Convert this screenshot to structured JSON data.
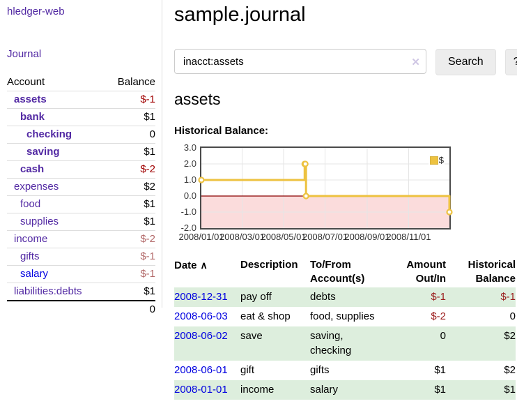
{
  "colors": {
    "link_purple": "#5229a3",
    "link_blue": "#0000e0",
    "negative_strong": "#a00000",
    "negative_soft": "#b36a6a",
    "table_negative": "#9b1c1c",
    "row_stripe_green": "#ddeedd",
    "series_gold": "#EDC240"
  },
  "sidebar": {
    "brand": "hledger-web",
    "nav": [
      {
        "label": "Journal"
      }
    ],
    "accounts_table": {
      "col_account": "Account",
      "col_balance": "Balance",
      "rows": [
        {
          "account": "assets",
          "balance": "$-1",
          "indent": 1,
          "bold": true,
          "negative": "strong"
        },
        {
          "account": "bank",
          "balance": "$1",
          "indent": 2,
          "bold": true
        },
        {
          "account": "checking",
          "balance": "0",
          "indent": 3,
          "bold": true
        },
        {
          "account": "saving",
          "balance": "$1",
          "indent": 3,
          "bold": true
        },
        {
          "account": "cash",
          "balance": "$-2",
          "indent": 2,
          "bold": true,
          "negative": "strong"
        },
        {
          "account": "expenses",
          "balance": "$2",
          "indent": 1
        },
        {
          "account": "food",
          "balance": "$1",
          "indent": 2
        },
        {
          "account": "supplies",
          "balance": "$1",
          "indent": 2
        },
        {
          "account": "income",
          "balance": "$-2",
          "indent": 1,
          "negative": "soft"
        },
        {
          "account": "gifts",
          "balance": "$-1",
          "indent": 2,
          "negative": "soft"
        },
        {
          "account": "salary",
          "balance": "$-1",
          "indent": 2,
          "negative": "soft",
          "link_style": "blue"
        },
        {
          "account": "liabilities:debts",
          "balance": "$1",
          "indent": 1
        }
      ],
      "total": "0"
    }
  },
  "header": {
    "title": "sample.journal"
  },
  "search": {
    "value": "inacct:assets",
    "clear_icon": "✕",
    "button": "Search",
    "help_button": "?"
  },
  "account_page": {
    "heading": "assets",
    "chart_label": "Historical Balance:"
  },
  "chart_data": {
    "type": "line",
    "style": "step-after",
    "title": "Historical Balance",
    "series": [
      {
        "name": "$",
        "color": "#EDC240",
        "points": [
          {
            "date": "2008-01-01",
            "value": 1
          },
          {
            "date": "2008-06-01",
            "value": 2
          },
          {
            "date": "2008-06-02",
            "value": 2
          },
          {
            "date": "2008-06-03",
            "value": 0
          },
          {
            "date": "2008-12-31",
            "value": -1
          }
        ]
      }
    ],
    "x_range": [
      "2008-01-01",
      "2008-12-31"
    ],
    "ylim": [
      -2,
      3
    ],
    "yticks": [
      3,
      2,
      1,
      0,
      -1,
      -2
    ],
    "ytick_labels": [
      "3.0",
      "2.0",
      "1.0",
      "0.0",
      "-1.0",
      "-2.0"
    ],
    "xticks": [
      "2008-01-01",
      "2008-03-01",
      "2008-05-01",
      "2008-07-01",
      "2008-09-01",
      "2008-11-01"
    ],
    "xtick_labels": [
      "2008/01/01",
      "2008/03/01",
      "2008/05/01",
      "2008/07/01",
      "2008/09/01",
      "2008/11/01"
    ],
    "legend": {
      "label": "$",
      "position": "top-right"
    },
    "grid": true,
    "negative_region_color": "#fbdcdc",
    "zero_line_color": "#8b0000",
    "gridline_color": "#e6e6e6"
  },
  "register_table": {
    "headers": {
      "date": "Date",
      "sort_icon": "∧",
      "description": "Description",
      "accounts": "To/From Account(s)",
      "amount": "Amount Out/In",
      "balance": "Historical Balance"
    },
    "rows": [
      {
        "date": "2008-12-31",
        "description": "pay off",
        "accounts": "debts",
        "amount": "$-1",
        "amount_negative": true,
        "balance": "$-1",
        "balance_negative": true
      },
      {
        "date": "2008-06-03",
        "description": "eat & shop",
        "accounts": "food, supplies",
        "amount": "$-2",
        "amount_negative": true,
        "balance": "0"
      },
      {
        "date": "2008-06-02",
        "description": "save",
        "accounts": "saving, checking",
        "amount": "0",
        "balance": "$2"
      },
      {
        "date": "2008-06-01",
        "description": "gift",
        "accounts": "gifts",
        "amount": "$1",
        "balance": "$2"
      },
      {
        "date": "2008-01-01",
        "description": "income",
        "accounts": "salary",
        "amount": "$1",
        "balance": "$1"
      }
    ]
  }
}
